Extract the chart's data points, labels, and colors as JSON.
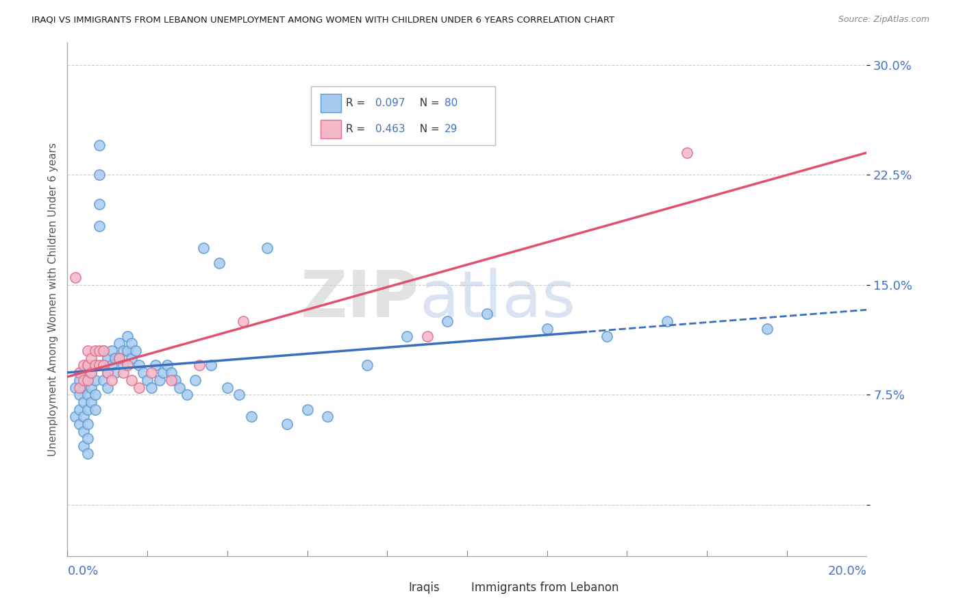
{
  "title": "IRAQI VS IMMIGRANTS FROM LEBANON UNEMPLOYMENT AMONG WOMEN WITH CHILDREN UNDER 6 YEARS CORRELATION CHART",
  "source": "Source: ZipAtlas.com",
  "ylabel": "Unemployment Among Women with Children Under 6 years",
  "xmin": 0.0,
  "xmax": 0.2,
  "ymin": -0.035,
  "ymax": 0.315,
  "yticks": [
    0.0,
    0.075,
    0.15,
    0.225,
    0.3
  ],
  "ytick_labels": [
    "",
    "7.5%",
    "15.0%",
    "22.5%",
    "30.0%"
  ],
  "iraqis_color": "#a8caee",
  "iraqis_edge_color": "#5b9bd5",
  "lebanon_color": "#f4b8c8",
  "lebanon_edge_color": "#e07090",
  "iraqis_line_color": "#3a6fbd",
  "lebanon_line_color": "#e05070",
  "watermark_zip": "ZIP",
  "watermark_atlas": "atlas",
  "iraqis_x": [
    0.002,
    0.002,
    0.003,
    0.003,
    0.003,
    0.003,
    0.004,
    0.004,
    0.004,
    0.004,
    0.004,
    0.004,
    0.005,
    0.005,
    0.005,
    0.005,
    0.005,
    0.005,
    0.005,
    0.006,
    0.006,
    0.006,
    0.007,
    0.007,
    0.007,
    0.007,
    0.008,
    0.008,
    0.008,
    0.008,
    0.009,
    0.009,
    0.009,
    0.01,
    0.01,
    0.01,
    0.011,
    0.011,
    0.012,
    0.012,
    0.013,
    0.013,
    0.014,
    0.014,
    0.015,
    0.015,
    0.016,
    0.016,
    0.017,
    0.018,
    0.019,
    0.02,
    0.021,
    0.022,
    0.023,
    0.024,
    0.025,
    0.026,
    0.027,
    0.028,
    0.03,
    0.032,
    0.034,
    0.036,
    0.038,
    0.04,
    0.043,
    0.046,
    0.05,
    0.055,
    0.06,
    0.065,
    0.075,
    0.085,
    0.095,
    0.105,
    0.12,
    0.135,
    0.15,
    0.175
  ],
  "iraqis_y": [
    0.08,
    0.06,
    0.085,
    0.075,
    0.065,
    0.055,
    0.09,
    0.08,
    0.07,
    0.06,
    0.05,
    0.04,
    0.095,
    0.085,
    0.075,
    0.065,
    0.055,
    0.045,
    0.035,
    0.09,
    0.08,
    0.07,
    0.095,
    0.085,
    0.075,
    0.065,
    0.245,
    0.225,
    0.205,
    0.19,
    0.105,
    0.095,
    0.085,
    0.1,
    0.09,
    0.08,
    0.105,
    0.095,
    0.1,
    0.09,
    0.11,
    0.1,
    0.105,
    0.095,
    0.115,
    0.105,
    0.11,
    0.1,
    0.105,
    0.095,
    0.09,
    0.085,
    0.08,
    0.095,
    0.085,
    0.09,
    0.095,
    0.09,
    0.085,
    0.08,
    0.075,
    0.085,
    0.175,
    0.095,
    0.165,
    0.08,
    0.075,
    0.06,
    0.175,
    0.055,
    0.065,
    0.06,
    0.095,
    0.115,
    0.125,
    0.13,
    0.12,
    0.115,
    0.125,
    0.12
  ],
  "lebanon_x": [
    0.002,
    0.003,
    0.003,
    0.004,
    0.004,
    0.005,
    0.005,
    0.005,
    0.006,
    0.006,
    0.007,
    0.007,
    0.008,
    0.008,
    0.009,
    0.009,
    0.01,
    0.011,
    0.013,
    0.014,
    0.015,
    0.016,
    0.018,
    0.021,
    0.026,
    0.033,
    0.044,
    0.09,
    0.155
  ],
  "lebanon_y": [
    0.155,
    0.09,
    0.08,
    0.095,
    0.085,
    0.105,
    0.095,
    0.085,
    0.1,
    0.09,
    0.105,
    0.095,
    0.105,
    0.095,
    0.105,
    0.095,
    0.09,
    0.085,
    0.1,
    0.09,
    0.095,
    0.085,
    0.08,
    0.09,
    0.085,
    0.095,
    0.125,
    0.115,
    0.24
  ],
  "iraqis_line_solid_end": 0.13
}
